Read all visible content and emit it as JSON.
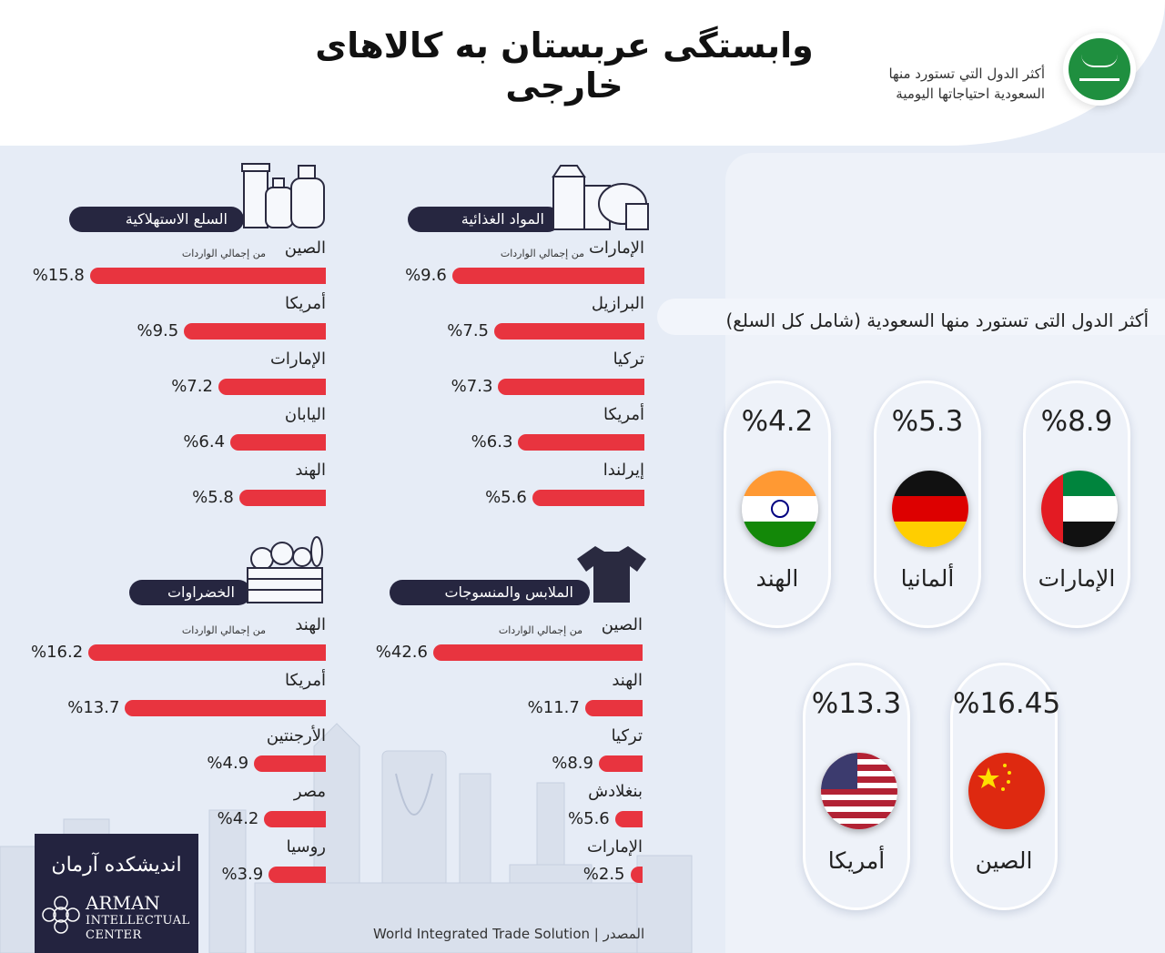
{
  "header": {
    "title": "وابستگی عربستان به کالاهای خارجی",
    "subtitle_line1": "أكثر الدول التي تستورد منها",
    "subtitle_line2": "السعودية احتياجاتها اليومية"
  },
  "overall": {
    "title": "أكثر الدول التى تستورد منها السعودية (شامل كل السلع)",
    "countries": [
      {
        "name": "الإمارات",
        "value_label": "%8.9",
        "value": 8.9,
        "flag": "uae-flag"
      },
      {
        "name": "ألمانيا",
        "value_label": "%5.3",
        "value": 5.3,
        "flag": "germany-flag"
      },
      {
        "name": "الهند",
        "value_label": "%4.2",
        "value": 4.2,
        "flag": "india-flag"
      },
      {
        "name": "الصين",
        "value_label": "%16.45",
        "value": 16.45,
        "flag": "china-flag"
      },
      {
        "name": "أمريكا",
        "value_label": "%13.3",
        "value": 13.3,
        "flag": "usa-flag"
      }
    ]
  },
  "sections": [
    {
      "title": "المواد الغذائية",
      "icon": "groceries-icon",
      "sublabel": "من إجمالي الواردات",
      "items": [
        {
          "country": "الإمارات",
          "label": "%9.6",
          "value": 9.6
        },
        {
          "country": "البرازيل",
          "label": "%7.5",
          "value": 7.5
        },
        {
          "country": "تركيا",
          "label": "%7.3",
          "value": 7.3
        },
        {
          "country": "أمريكا",
          "label": "%6.3",
          "value": 6.3
        },
        {
          "country": "إيرلندا",
          "label": "%5.6",
          "value": 5.6
        }
      ]
    },
    {
      "title": "السلع الاستهلاكية",
      "icon": "consumer-goods-icon",
      "sublabel": "من إجمالي الواردات",
      "items": [
        {
          "country": "الصين",
          "label": "%15.8",
          "value": 15.8
        },
        {
          "country": "أمريكا",
          "label": "%9.5",
          "value": 9.5
        },
        {
          "country": "الإمارات",
          "label": "%7.2",
          "value": 7.2
        },
        {
          "country": "اليابان",
          "label": "%6.4",
          "value": 6.4
        },
        {
          "country": "الهند",
          "label": "%5.8",
          "value": 5.8
        }
      ]
    },
    {
      "title": "الملابس والمنسوجات",
      "icon": "tshirt-icon",
      "sublabel": "من إجمالي الواردات",
      "items": [
        {
          "country": "الصين",
          "label": "%42.6",
          "value": 42.6
        },
        {
          "country": "الهند",
          "label": "%11.7",
          "value": 11.7
        },
        {
          "country": "تركيا",
          "label": "%8.9",
          "value": 8.9
        },
        {
          "country": "بنغلادش",
          "label": "%5.6",
          "value": 5.6
        },
        {
          "country": "الإمارات",
          "label": "%2.5",
          "value": 2.5
        }
      ]
    },
    {
      "title": "الخضراوات",
      "icon": "vegetable-crate-icon",
      "sublabel": "من إجمالي الواردات",
      "items": [
        {
          "country": "الهند",
          "label": "%16.2",
          "value": 16.2
        },
        {
          "country": "أمريكا",
          "label": "%13.7",
          "value": 13.7
        },
        {
          "country": "الأرجنتين",
          "label": "%4.9",
          "value": 4.9
        },
        {
          "country": "مصر",
          "label": "%4.2",
          "value": 4.2
        },
        {
          "country": "روسيا",
          "label": "%3.9",
          "value": 3.9
        }
      ]
    }
  ],
  "chart_data": [
    {
      "type": "bar",
      "title": "المواد الغذائية",
      "categories": [
        "الإمارات",
        "البرازيل",
        "تركيا",
        "أمريكا",
        "إيرلندا"
      ],
      "values": [
        9.6,
        7.5,
        7.3,
        6.3,
        5.6
      ]
    },
    {
      "type": "bar",
      "title": "السلع الاستهلاكية",
      "categories": [
        "الصين",
        "أمريكا",
        "الإمارات",
        "اليابان",
        "الهند"
      ],
      "values": [
        15.8,
        9.5,
        7.2,
        6.4,
        5.8
      ]
    },
    {
      "type": "bar",
      "title": "الملابس والمنسوجات",
      "categories": [
        "الصين",
        "الهند",
        "تركيا",
        "بنغلادش",
        "الإمارات"
      ],
      "values": [
        42.6,
        11.7,
        8.9,
        5.6,
        2.5
      ]
    },
    {
      "type": "bar",
      "title": "الخضراوات",
      "categories": [
        "الهند",
        "أمريكا",
        "الأرجنتين",
        "مصر",
        "روسيا"
      ],
      "values": [
        16.2,
        13.7,
        4.9,
        4.2,
        3.9
      ]
    },
    {
      "type": "bar",
      "title": "أكثر الدول التى تستورد منها السعودية (شامل كل السلع)",
      "categories": [
        "الصين",
        "أمريكا",
        "الإمارات",
        "ألمانيا",
        "الهند"
      ],
      "values": [
        16.45,
        13.3,
        8.9,
        5.3,
        4.2
      ]
    }
  ],
  "logo": {
    "persian": "اندیشکده آرمان",
    "line1": "ARMAN",
    "line2": "INTELLECTUAL",
    "line3": "CENTER"
  },
  "source": "World Integrated Trade Solution | المصدر",
  "colors": {
    "bar": "#e8343f",
    "header": "#262640",
    "background": "#e6ecf6"
  }
}
